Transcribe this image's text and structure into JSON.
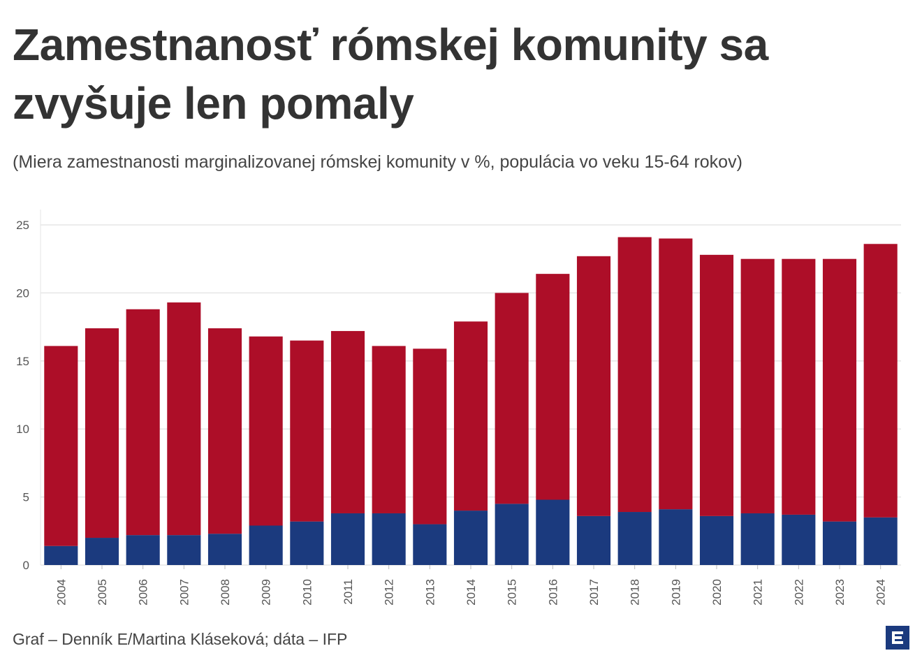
{
  "chart_data": {
    "type": "stacked-bar",
    "title": "Zamestnanosť rómskej komunity sa zvyšuje len pomaly",
    "subtitle": "(Miera zamestnanosti marginalizovanej rómskej komunity v %, populácia vo veku 15-64 rokov)",
    "source": "Graf – Denník E/Martina Kláseková; dáta – IFP",
    "categories": [
      "2004",
      "2005",
      "2006",
      "2007",
      "2008",
      "2009",
      "2010",
      "2011",
      "2012",
      "2013",
      "2014",
      "2015",
      "2016",
      "2017",
      "2018",
      "2019",
      "2020",
      "2021",
      "2022",
      "2023",
      "2024"
    ],
    "series": [
      {
        "color": "#1b3a7e",
        "values": [
          1.4,
          2.0,
          2.2,
          2.2,
          2.3,
          2.9,
          3.2,
          3.8,
          3.8,
          3.0,
          4.0,
          4.5,
          4.8,
          3.6,
          3.9,
          4.1,
          3.6,
          3.8,
          3.7,
          3.2,
          3.5
        ]
      },
      {
        "color": "#ad0e28",
        "values": [
          14.7,
          15.4,
          16.6,
          17.1,
          15.1,
          13.9,
          13.3,
          13.4,
          12.3,
          12.9,
          13.9,
          15.5,
          16.6,
          19.1,
          20.2,
          19.9,
          19.2,
          18.7,
          18.8,
          19.3,
          20.1
        ]
      }
    ],
    "ylim": [
      0,
      25
    ],
    "yticks": [
      0,
      5,
      10,
      15,
      20,
      25
    ],
    "grid": true
  }
}
